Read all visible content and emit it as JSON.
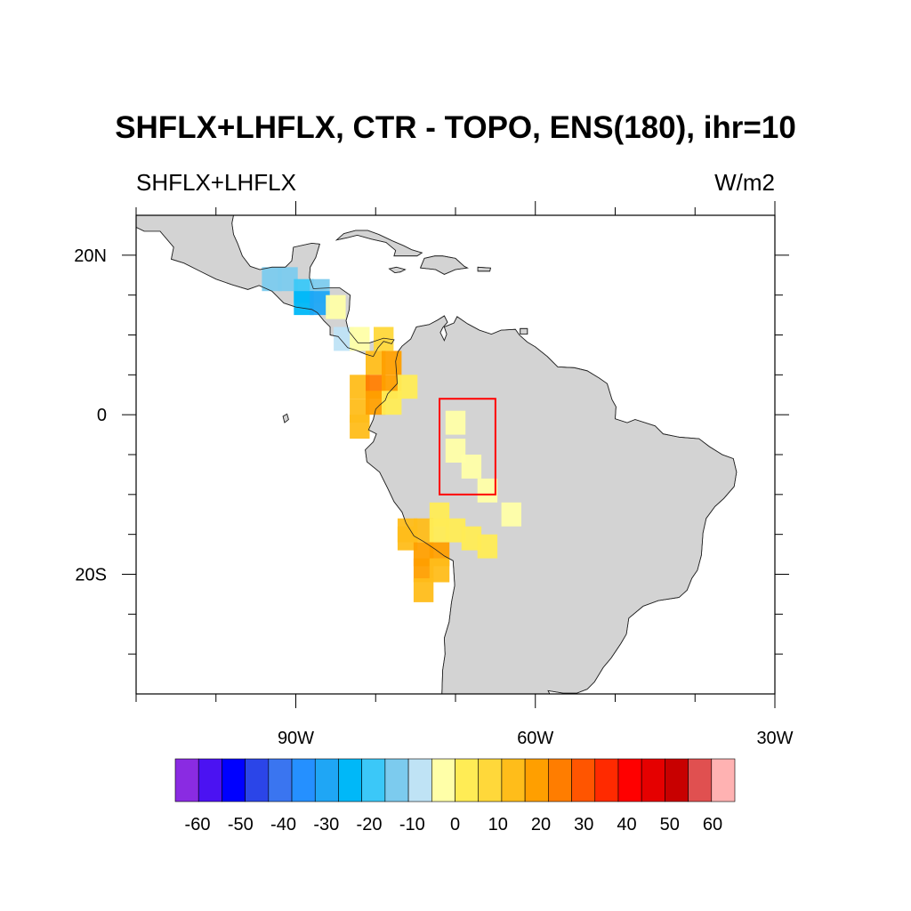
{
  "title": "SHFLX+LHFLX, CTR - TOPO, ENS(180), ihr=10",
  "left_subtitle": "SHFLX+LHFLX",
  "right_subtitle": "W/m2",
  "map": {
    "lon_range": [
      -110,
      -30
    ],
    "lat_range": [
      -35,
      25
    ],
    "land_color": "#d3d3d3",
    "ocean_color": "#ffffff",
    "x_ticks": [
      {
        "lon": -90,
        "label": "90W"
      },
      {
        "lon": -60,
        "label": "60W"
      },
      {
        "lon": -30,
        "label": "30W"
      }
    ],
    "y_ticks": [
      {
        "lat": 20,
        "label": "20N"
      },
      {
        "lat": 0,
        "label": "0"
      },
      {
        "lat": -20,
        "label": "20S"
      }
    ],
    "box": {
      "lon": [
        -72,
        -65
      ],
      "lat": [
        -10,
        2
      ],
      "color": "#ff0000"
    }
  },
  "colorbar": {
    "labels": [
      "-60",
      "-50",
      "-40",
      "-30",
      "-20",
      "-10",
      "0",
      "10",
      "20",
      "30",
      "40",
      "50",
      "60"
    ],
    "colors": [
      "#8a2be2",
      "#4b12f2",
      "#0000ff",
      "#2b45e8",
      "#3a75f0",
      "#2590ff",
      "#1fa6f5",
      "#00b8f8",
      "#3bc8f8",
      "#7ccbee",
      "#bfe3f5",
      "#ffffa8",
      "#ffec55",
      "#ffd83a",
      "#ffbd1a",
      "#ff9f00",
      "#ff7d00",
      "#ff5500",
      "#ff2a00",
      "#ff0000",
      "#e50000",
      "#c80000",
      "#e05050",
      "#ffb2b2"
    ]
  },
  "chart_data": {
    "type": "heatmap",
    "title": "SHFLX+LHFLX, CTR - TOPO, ENS(180), ihr=10",
    "units": "W/m2",
    "cells": [
      {
        "lon": -93.0,
        "lat": 17.0,
        "value": -15
      },
      {
        "lon": -91.0,
        "lat": 17.0,
        "value": -15
      },
      {
        "lon": -89.0,
        "lat": 15.5,
        "value": -20
      },
      {
        "lon": -87.0,
        "lat": 15.5,
        "value": -15
      },
      {
        "lon": -89.0,
        "lat": 14.0,
        "value": -25
      },
      {
        "lon": -87.0,
        "lat": 14.0,
        "value": -30
      },
      {
        "lon": -85.0,
        "lat": 13.5,
        "value": -5
      },
      {
        "lon": -84.0,
        "lat": 9.5,
        "value": -10
      },
      {
        "lon": -82.0,
        "lat": 9.5,
        "value": -5
      },
      {
        "lon": -79.0,
        "lat": 9.5,
        "value": 10
      },
      {
        "lon": -80.0,
        "lat": 6.5,
        "value": 15
      },
      {
        "lon": -78.0,
        "lat": 6.5,
        "value": 20
      },
      {
        "lon": -82.0,
        "lat": 3.5,
        "value": 15
      },
      {
        "lon": -80.0,
        "lat": 3.5,
        "value": 25
      },
      {
        "lon": -78.0,
        "lat": 3.5,
        "value": 20
      },
      {
        "lon": -76.0,
        "lat": 3.5,
        "value": 5
      },
      {
        "lon": -82.0,
        "lat": 0.5,
        "value": 15
      },
      {
        "lon": -80.0,
        "lat": 1.5,
        "value": 20
      },
      {
        "lon": -78.0,
        "lat": 1.5,
        "value": 5
      },
      {
        "lon": -82.0,
        "lat": -1.5,
        "value": 15
      },
      {
        "lon": -70.0,
        "lat": -1.0,
        "value": -5
      },
      {
        "lon": -70.0,
        "lat": -4.5,
        "value": -5
      },
      {
        "lon": -68.0,
        "lat": -6.5,
        "value": -5
      },
      {
        "lon": -66.0,
        "lat": -9.5,
        "value": -5
      },
      {
        "lon": -63.0,
        "lat": -12.5,
        "value": -5
      },
      {
        "lon": -72.0,
        "lat": -12.5,
        "value": 5
      },
      {
        "lon": -76.0,
        "lat": -14.5,
        "value": 15
      },
      {
        "lon": -74.0,
        "lat": -14.5,
        "value": 15
      },
      {
        "lon": -72.0,
        "lat": -14.5,
        "value": 5
      },
      {
        "lon": -70.0,
        "lat": -14.5,
        "value": 5
      },
      {
        "lon": -76.0,
        "lat": -15.5,
        "value": 15
      },
      {
        "lon": -68.0,
        "lat": -15.5,
        "value": 5
      },
      {
        "lon": -66.0,
        "lat": -16.5,
        "value": 5
      },
      {
        "lon": -74.0,
        "lat": -17.5,
        "value": 20
      },
      {
        "lon": -72.0,
        "lat": -17.5,
        "value": 20
      },
      {
        "lon": -74.0,
        "lat": -19.5,
        "value": 20
      },
      {
        "lon": -72.0,
        "lat": -19.5,
        "value": 15
      },
      {
        "lon": -74.0,
        "lat": -22.0,
        "value": 15
      }
    ]
  }
}
